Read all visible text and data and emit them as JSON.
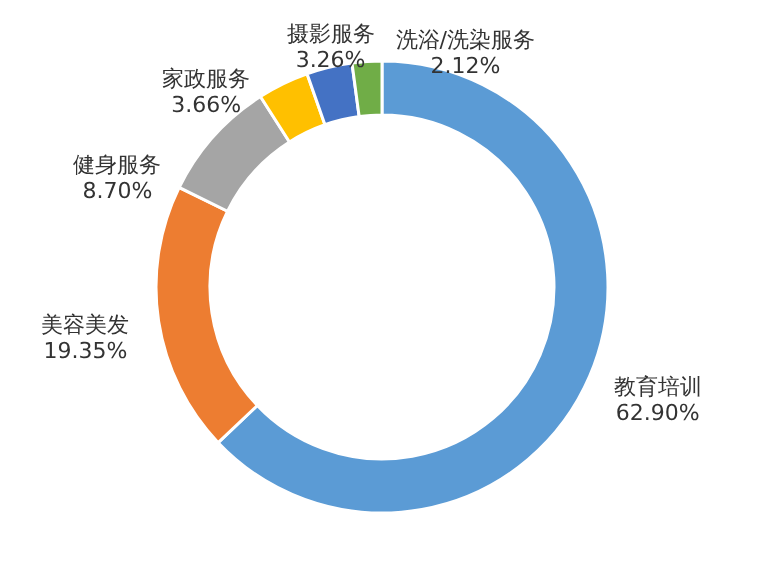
{
  "chart_data": {
    "type": "donut",
    "categories": [
      "教育培训",
      "美容美发",
      "健身服务",
      "家政服务",
      "摄影服务",
      "洗浴/洗染服务"
    ],
    "values": [
      62.9,
      19.35,
      8.7,
      3.66,
      3.26,
      2.12
    ],
    "value_labels": [
      "62.90%",
      "19.35%",
      "8.70%",
      "3.66%",
      "3.26%",
      "2.12%"
    ],
    "colors": [
      "#5b9bd5",
      "#ed7d31",
      "#a5a5a5",
      "#ffc000",
      "#4472c4",
      "#70ad47"
    ]
  }
}
